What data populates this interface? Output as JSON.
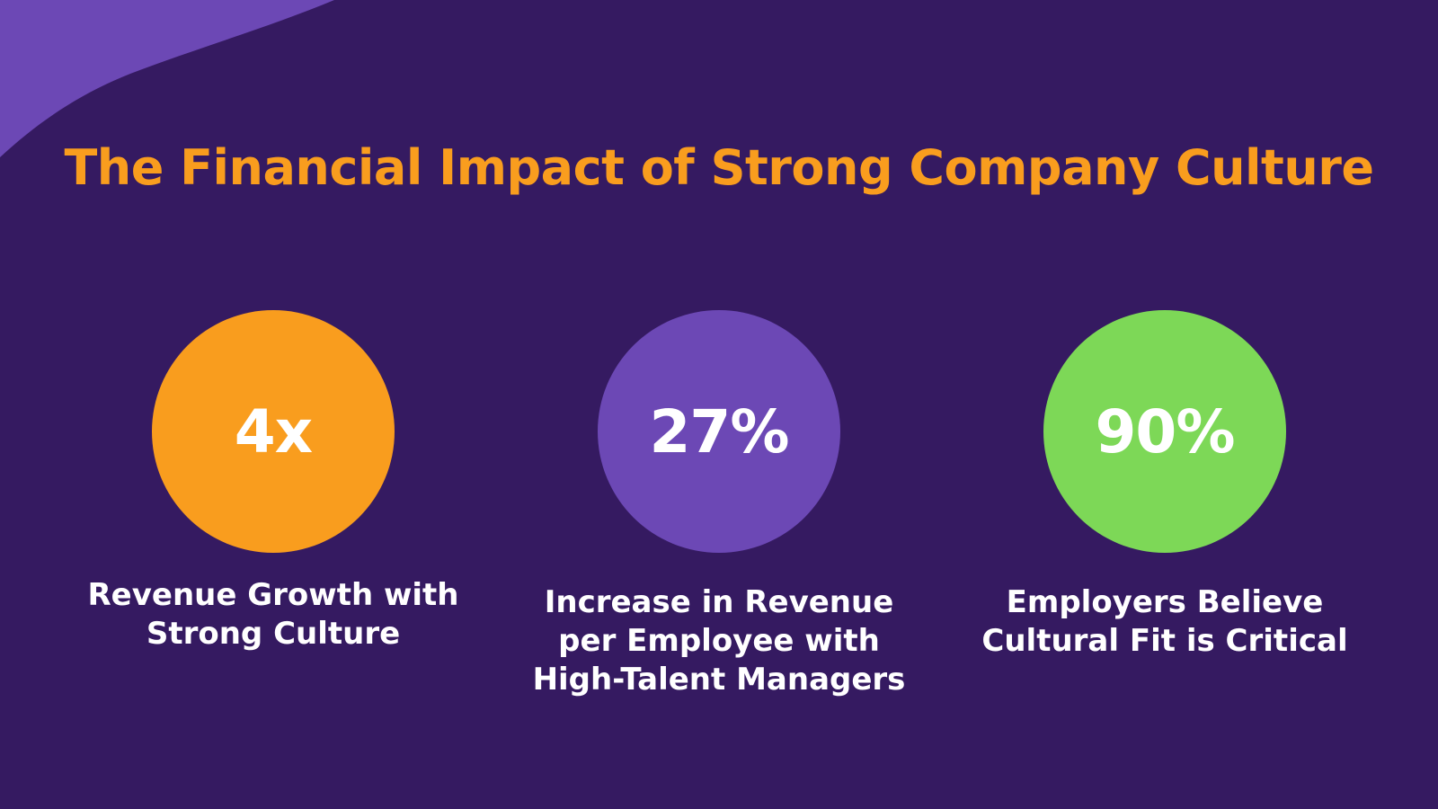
{
  "colors": {
    "background": "#351a61",
    "accent_purple": "#6c48b5",
    "title": "#f99d1e",
    "text": "#ffffff"
  },
  "title": "The Financial Impact of Strong Company Culture",
  "stats": [
    {
      "value": "4x",
      "caption": "Revenue Growth with Strong Culture",
      "color": "#f99d1e"
    },
    {
      "value": "27%",
      "caption": "Increase in Revenue per Employee with High-Talent Managers",
      "color": "#6c48b5"
    },
    {
      "value": "90%",
      "caption": "Employers Believe Cultural Fit is Critical",
      "color": "#7dd857"
    }
  ]
}
